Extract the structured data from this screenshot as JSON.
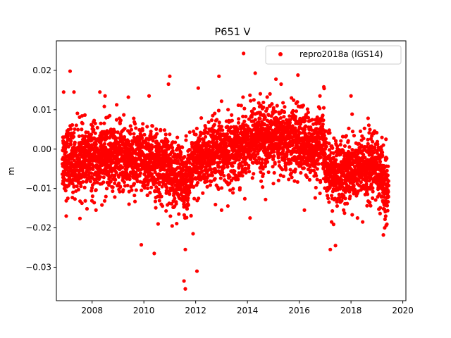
{
  "chart_data": {
    "type": "scatter",
    "title": "P651 V",
    "xlabel": "",
    "ylabel": "m",
    "xlim": [
      2006.62,
      2020.12
    ],
    "ylim": [
      -0.0385,
      0.0275
    ],
    "xticks": [
      2008,
      2010,
      2012,
      2014,
      2016,
      2018,
      2020
    ],
    "xtick_labels": [
      "2008",
      "2010",
      "2012",
      "2014",
      "2016",
      "2018",
      "2020"
    ],
    "yticks": [
      -0.03,
      -0.02,
      -0.01,
      0.0,
      0.01,
      0.02
    ],
    "ytick_labels": [
      "−0.03",
      "−0.02",
      "−0.01",
      "0.00",
      "0.01",
      "0.02"
    ],
    "grid": false,
    "legend_position": "top-right",
    "series": [
      {
        "name": "repro2018a (IGS14)",
        "color": "#ff0000",
        "marker": "circle",
        "trend": [
          [
            2006.85,
            -0.002
          ],
          [
            2007.0,
            -0.003
          ],
          [
            2007.5,
            -0.003
          ],
          [
            2008.0,
            -0.003
          ],
          [
            2008.5,
            -0.002
          ],
          [
            2009.0,
            -0.002
          ],
          [
            2009.5,
            -0.002
          ],
          [
            2010.0,
            -0.003
          ],
          [
            2010.5,
            -0.004
          ],
          [
            2011.0,
            -0.005
          ],
          [
            2011.5,
            -0.008
          ],
          [
            2011.8,
            -0.007
          ],
          [
            2012.0,
            -0.003
          ],
          [
            2012.5,
            -0.002
          ],
          [
            2013.0,
            -0.001
          ],
          [
            2013.5,
            0.0
          ],
          [
            2014.0,
            0.002
          ],
          [
            2014.5,
            0.003
          ],
          [
            2015.0,
            0.003
          ],
          [
            2015.5,
            0.002
          ],
          [
            2016.0,
            0.002
          ],
          [
            2016.5,
            0.0
          ],
          [
            2016.9,
            0.002
          ],
          [
            2017.1,
            -0.006
          ],
          [
            2017.5,
            -0.006
          ],
          [
            2018.0,
            -0.005
          ],
          [
            2018.5,
            -0.005
          ],
          [
            2019.0,
            -0.004
          ],
          [
            2019.2,
            -0.008
          ],
          [
            2019.45,
            -0.012
          ]
        ],
        "spread": 0.0042,
        "count": 4300,
        "outliers": [
          [
            2007.15,
            0.0198
          ],
          [
            2006.9,
            0.0145
          ],
          [
            2007.3,
            0.0145
          ],
          [
            2008.3,
            0.0145
          ],
          [
            2011.55,
            -0.0335
          ],
          [
            2011.6,
            -0.0355
          ],
          [
            2012.05,
            -0.031
          ],
          [
            2010.4,
            -0.0265
          ],
          [
            2011.6,
            -0.0255
          ],
          [
            2013.85,
            0.0243
          ],
          [
            2014.3,
            0.0193
          ],
          [
            2015.95,
            0.0188
          ],
          [
            2016.95,
            0.0158
          ],
          [
            2017.2,
            -0.0255
          ],
          [
            2017.4,
            -0.0245
          ],
          [
            2011.0,
            0.0185
          ],
          [
            2012.9,
            0.0185
          ],
          [
            2009.9,
            -0.0243
          ],
          [
            2010.95,
            0.0165
          ],
          [
            2012.1,
            0.0155
          ],
          [
            2018.0,
            0.0135
          ],
          [
            2019.25,
            -0.0218
          ],
          [
            2019.3,
            -0.02
          ],
          [
            2010.95,
            -0.0075
          ],
          [
            2009.4,
            0.0132
          ],
          [
            2008.5,
            0.0135
          ],
          [
            2013.0,
            -0.0155
          ],
          [
            2014.1,
            -0.0175
          ],
          [
            2014.25,
            0.0125
          ],
          [
            2015.3,
            0.0165
          ],
          [
            2016.2,
            -0.0155
          ],
          [
            2016.8,
            0.0135
          ],
          [
            2017.25,
            -0.0185
          ],
          [
            2018.25,
            -0.0175
          ],
          [
            2018.45,
            -0.0185
          ],
          [
            2019.35,
            0.0025
          ],
          [
            2007.0,
            -0.017
          ],
          [
            2008.15,
            -0.0155
          ],
          [
            2010.55,
            -0.019
          ],
          [
            2011.9,
            -0.0215
          ],
          [
            2010.2,
            0.0135
          ],
          [
            2011.35,
            -0.0165
          ],
          [
            2015.7,
            0.013
          ],
          [
            2014.7,
            -0.0128
          ]
        ]
      }
    ]
  }
}
